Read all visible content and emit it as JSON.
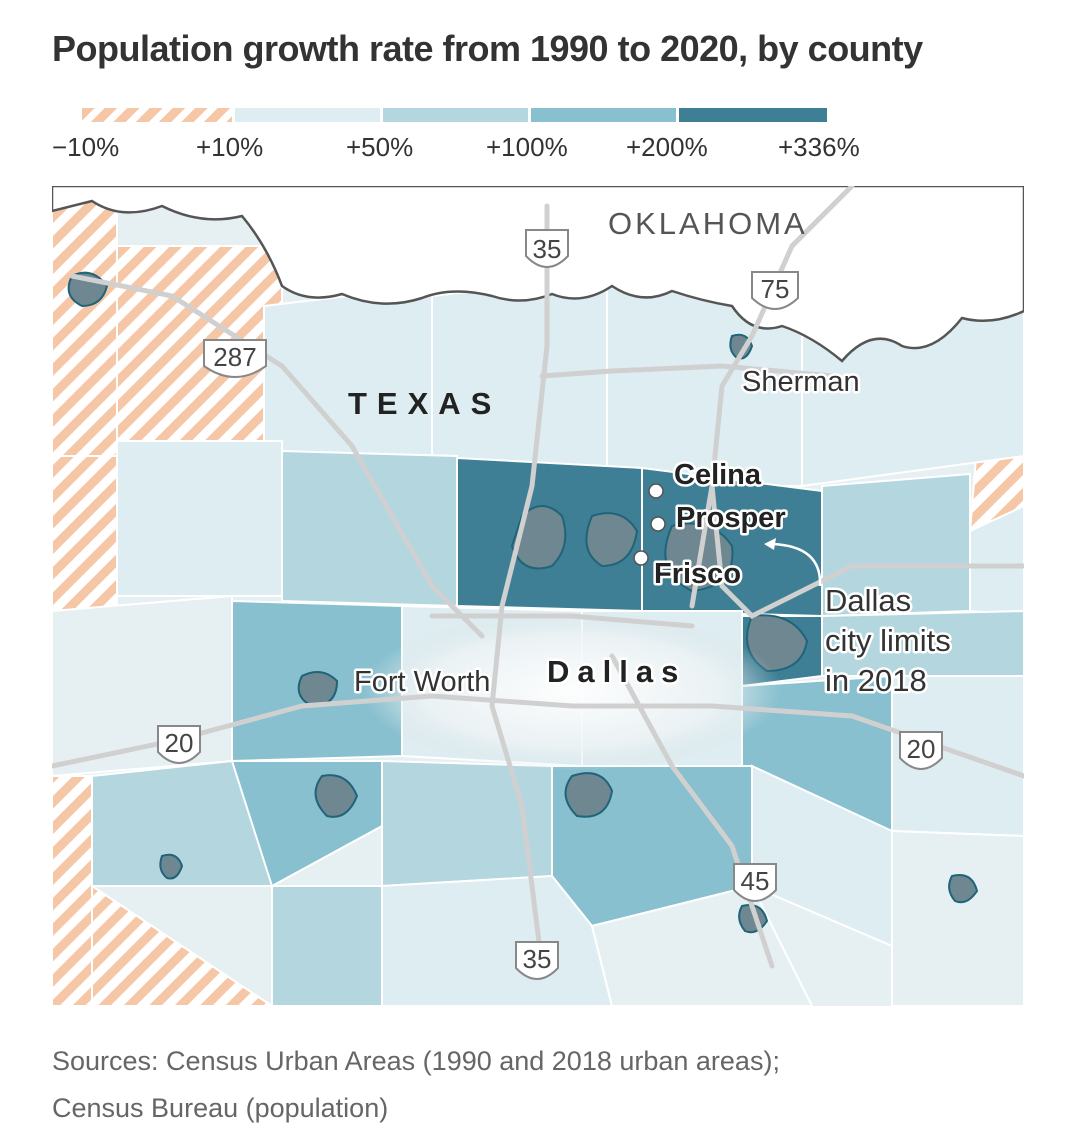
{
  "title": "Population growth rate from 1990 to 2020, by county",
  "legend": {
    "ticks": [
      "−10%",
      "+10%",
      "+50%",
      "+100%",
      "+200%",
      "+336%"
    ],
    "colors": {
      "decline": "#f6c7a6",
      "c1": "#deedf1",
      "c2": "#b3d6df",
      "c3": "#88c0cf",
      "c4": "#3f8aa0",
      "c5": "#2e7287"
    }
  },
  "map": {
    "state_labels": {
      "oklahoma": "OKLAHOMA",
      "texas": "TEXAS"
    },
    "cities": {
      "sherman": "Sherman",
      "celina": "Celina",
      "prosper": "Prosper",
      "frisco": "Frisco",
      "fort_worth": "Fort Worth",
      "dallas": "Dallas"
    },
    "annotation": [
      "Dallas",
      "city limits",
      "in 2018"
    ],
    "highways": {
      "i35_north": "35",
      "us75": "75",
      "us287": "287",
      "i20_west": "20",
      "i20_east": "20",
      "i45": "45",
      "i35_south": "35"
    }
  },
  "source": [
    "Sources: Census Urban Areas (1990 and 2018 urban areas);",
    "Census Bureau (population)"
  ]
}
